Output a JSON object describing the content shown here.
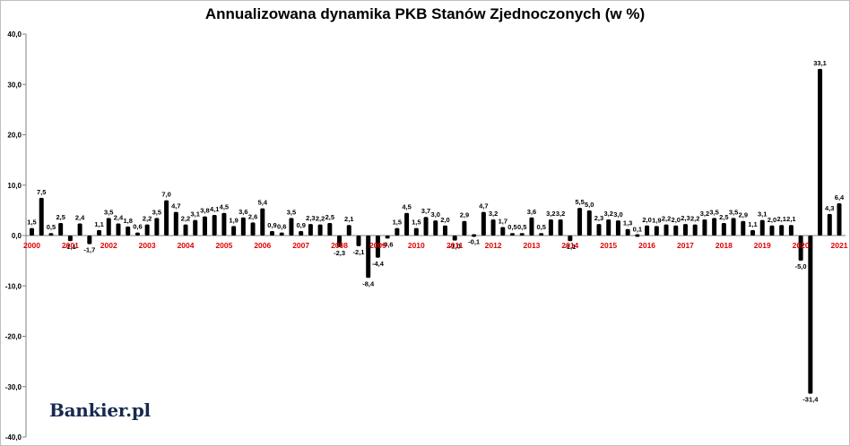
{
  "logo_text": "Bankier.pl",
  "colors": {
    "bar": "#000000",
    "year_labels": "#e00000",
    "axis": "#808080",
    "logo": "#17294f"
  },
  "chart_data": {
    "type": "bar",
    "title": "Annualizowana dynamika PKB Stanów Zjednoczonych (w %)",
    "xlabel": "",
    "ylabel": "",
    "ylim": [
      -40,
      40
    ],
    "y_ticks": [
      "40,0",
      "30,0",
      "20,0",
      "10,0",
      "0,0",
      "-10,0",
      "-20,0",
      "-30,0",
      "-40,0"
    ],
    "y_tick_values": [
      40,
      30,
      20,
      10,
      0,
      -10,
      -20,
      -30,
      -40
    ],
    "grid": false,
    "legend": "none",
    "year_labels": [
      "2000",
      "2001",
      "2002",
      "2003",
      "2004",
      "2005",
      "2006",
      "2007",
      "2008",
      "2009",
      "2010",
      "2011",
      "2012",
      "2013",
      "2014",
      "2015",
      "2016",
      "2017",
      "2018",
      "2019",
      "2020",
      "2021"
    ],
    "values": [
      1.5,
      7.5,
      0.5,
      2.5,
      -1.1,
      2.4,
      -1.7,
      1.1,
      3.5,
      2.4,
      1.8,
      0.6,
      2.2,
      3.5,
      7.0,
      4.7,
      2.2,
      3.1,
      3.8,
      4.1,
      4.5,
      1.9,
      3.6,
      2.6,
      5.4,
      0.9,
      0.6,
      3.5,
      0.9,
      2.3,
      2.2,
      2.5,
      -2.3,
      2.1,
      -2.1,
      -8.4,
      -4.4,
      -0.6,
      1.5,
      4.5,
      1.5,
      3.7,
      3.0,
      2.0,
      -1.0,
      2.9,
      -0.1,
      4.7,
      3.2,
      1.7,
      0.5,
      0.5,
      3.6,
      0.5,
      3.2,
      3.2,
      -1.1,
      5.5,
      5.0,
      2.3,
      3.2,
      3.0,
      1.3,
      0.1,
      2.0,
      1.9,
      2.2,
      2.0,
      2.3,
      2.2,
      3.2,
      3.5,
      2.5,
      3.5,
      2.9,
      1.1,
      3.1,
      2.0,
      2.1,
      2.1,
      -5.0,
      -31.4,
      33.1,
      4.3,
      6.4
    ],
    "value_labels": [
      "1,5",
      "7,5",
      "0,5",
      "2,5",
      "-1,1",
      "2,4",
      "-1,7",
      "1,1",
      "3,5",
      "2,4",
      "1,8",
      "0,6",
      "2,2",
      "3,5",
      "7,0",
      "4,7",
      "2,2",
      "3,1",
      "3,8",
      "4,1",
      "4,5",
      "1,9",
      "3,6",
      "2,6",
      "5,4",
      "0,9",
      "0,6",
      "3,5",
      "0,9",
      "2,3",
      "2,2",
      "2,5",
      "-2,3",
      "2,1",
      "-2,1",
      "-8,4",
      "-4,4",
      "-0,6",
      "1,5",
      "4,5",
      "1,5",
      "3,7",
      "3,0",
      "2,0",
      "-1,0",
      "2,9",
      "-0,1",
      "4,7",
      "3,2",
      "1,7",
      "0,5",
      "0,5",
      "3,6",
      "0,5",
      "3,2",
      "3,2",
      "-1,1",
      "5,5",
      "5,0",
      "2,3",
      "3,2",
      "3,0",
      "1,3",
      "0,1",
      "2,0",
      "1,9",
      "2,2",
      "2,0",
      "2,3",
      "2,2",
      "3,2",
      "3,5",
      "2,5",
      "3,5",
      "2,9",
      "1,1",
      "3,1",
      "2,0",
      "2,1",
      "2,1",
      "-5,0",
      "-31,4",
      "33,1",
      "4,3",
      "6,4"
    ]
  }
}
